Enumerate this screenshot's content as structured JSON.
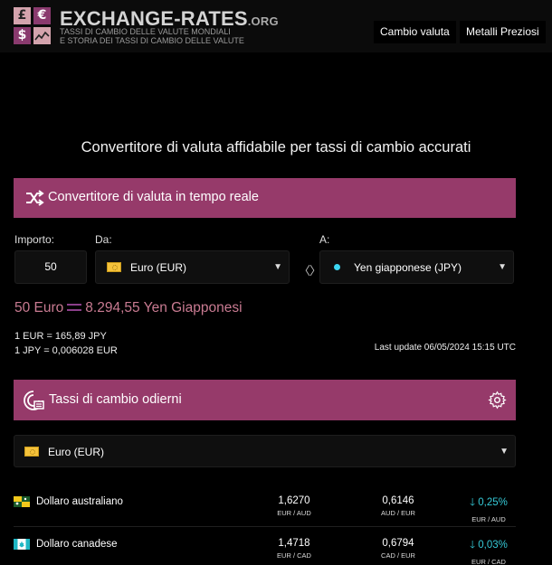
{
  "header": {
    "logo_symbols": [
      "£",
      "€",
      "$"
    ],
    "brand_main": "EXCHANGE-RATES",
    "brand_suffix": ".ORG",
    "tagline_1": "TASSI DI CAMBIO DELLE VALUTE MONDIALI",
    "tagline_2": "E STORIA DEI TASSI DI CAMBIO DELLE VALUTE",
    "nav": [
      "Cambio valuta",
      "Metalli Preziosi"
    ]
  },
  "headline": "Convertitore di valuta affidabile per tassi di cambio accurati",
  "converter": {
    "title": "Convertitore di valuta in tempo reale",
    "amount_label": "Importo:",
    "from_label": "Da:",
    "to_label": "A:",
    "amount": "50",
    "from_currency": "Euro (EUR)",
    "to_currency": "Yen giapponese (JPY)",
    "swap_symbol": "〈〉",
    "result_left": "50 Euro",
    "result_right": "8.294,55 Yen Giapponesi",
    "rate_1": "1 EUR = 165,89 JPY",
    "rate_2": "1 JPY = 0,006028 EUR",
    "last_update": "Last update 06/05/2024 15:15 UTC"
  },
  "rates_today": {
    "title": "Tassi di cambio odierni",
    "base_currency": "Euro (EUR)",
    "rows": [
      {
        "name": "Dollaro australiano",
        "rate": "1,6270",
        "rate_pair": "EUR / AUD",
        "inverse": "0,6146",
        "inverse_pair": "AUD / EUR",
        "change": "0,25%",
        "change_pair": "EUR / AUD"
      },
      {
        "name": "Dollaro canadese",
        "rate": "1,4718",
        "rate_pair": "EUR / CAD",
        "inverse": "0,6794",
        "inverse_pair": "CAD / EUR",
        "change": "0,03%",
        "change_pair": "EUR / CAD"
      }
    ]
  },
  "colors": {
    "accent_bar": "#963a6a",
    "result_text": "#c97b92",
    "change_down": "#35c9d6",
    "to_dot": "#3cd6f2"
  }
}
